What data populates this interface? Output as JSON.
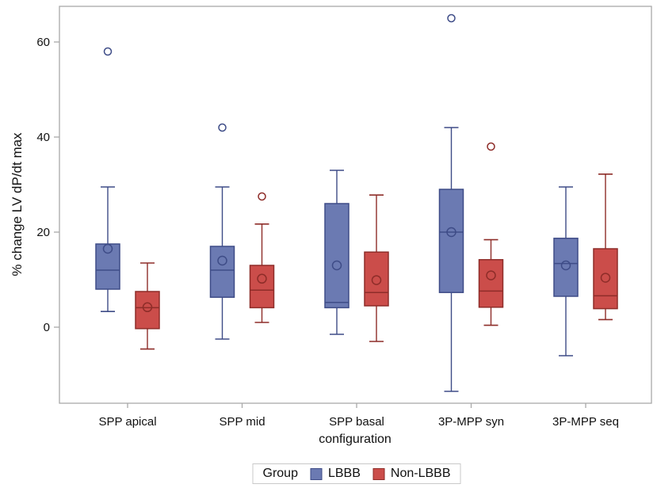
{
  "chart_data": {
    "type": "boxplot",
    "title": "",
    "xlabel": "configuration",
    "ylabel": "% change LV dP/dt max",
    "legend_title": "Group",
    "legend_position": "bottom",
    "grid": false,
    "categories": [
      "SPP apical",
      "SPP mid",
      "SPP basal",
      "3P-MPP syn",
      "3P-MPP seq"
    ],
    "y_ticks": [
      0,
      20,
      40,
      60
    ],
    "ylim": [
      -16,
      67.5
    ],
    "series": [
      {
        "name": "LBBB",
        "fill": "#6b7ab2",
        "stroke": "#3e4c87",
        "boxes": [
          {
            "category": "SPP apical",
            "whisker_low": 3.3,
            "q1": 8,
            "median": 12,
            "q3": 17.5,
            "whisker_high": 29.5,
            "mean": 16.5,
            "outliers": [
              58
            ]
          },
          {
            "category": "SPP mid",
            "whisker_low": -2.5,
            "q1": 6.3,
            "median": 12,
            "q3": 17,
            "whisker_high": 29.5,
            "mean": 14,
            "outliers": [
              42
            ]
          },
          {
            "category": "SPP basal",
            "whisker_low": -1.5,
            "q1": 4.1,
            "median": 5.2,
            "q3": 26,
            "whisker_high": 33,
            "mean": 13,
            "outliers": []
          },
          {
            "category": "3P-MPP syn",
            "whisker_low": -13.5,
            "q1": 7.3,
            "median": 20,
            "q3": 29,
            "whisker_high": 42,
            "mean": 20,
            "outliers": [
              65
            ]
          },
          {
            "category": "3P-MPP seq",
            "whisker_low": -6,
            "q1": 6.5,
            "median": 13.4,
            "q3": 18.7,
            "whisker_high": 29.5,
            "mean": 13,
            "outliers": []
          }
        ]
      },
      {
        "name": "Non-LBBB",
        "fill": "#cb4d4a",
        "stroke": "#8e2d29",
        "boxes": [
          {
            "category": "SPP apical",
            "whisker_low": -4.6,
            "q1": -0.3,
            "median": 4.1,
            "q3": 7.5,
            "whisker_high": 13.5,
            "mean": 4.2,
            "outliers": []
          },
          {
            "category": "SPP mid",
            "whisker_low": 1,
            "q1": 4.1,
            "median": 7.8,
            "q3": 13,
            "whisker_high": 21.7,
            "mean": 10.2,
            "outliers": [
              27.5
            ]
          },
          {
            "category": "SPP basal",
            "whisker_low": -3,
            "q1": 4.5,
            "median": 7.3,
            "q3": 15.8,
            "whisker_high": 27.8,
            "mean": 9.9,
            "outliers": []
          },
          {
            "category": "3P-MPP syn",
            "whisker_low": 0.4,
            "q1": 4.2,
            "median": 7.6,
            "q3": 14.2,
            "whisker_high": 18.4,
            "mean": 10.9,
            "outliers": [
              38
            ]
          },
          {
            "category": "3P-MPP seq",
            "whisker_low": 1.6,
            "q1": 3.9,
            "median": 6.6,
            "q3": 16.5,
            "whisker_high": 32.2,
            "mean": 10.4,
            "outliers": []
          }
        ]
      }
    ],
    "frame_color": "#a9a9a9",
    "text_color": "#111111"
  }
}
